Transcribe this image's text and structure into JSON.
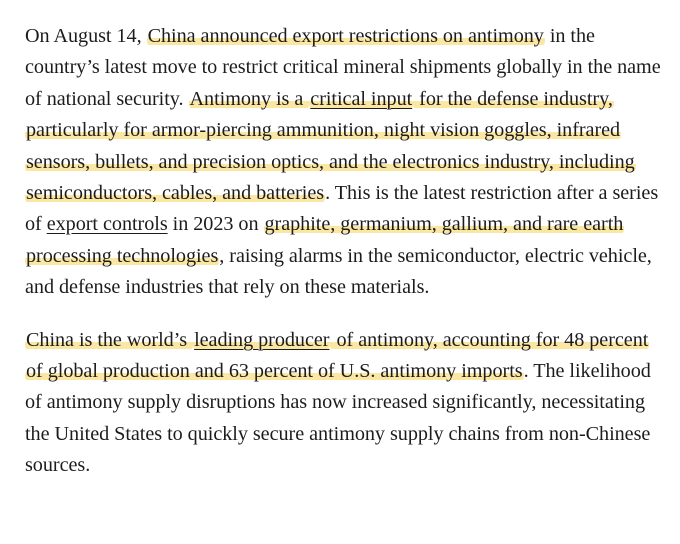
{
  "paragraphs": [
    {
      "segments": [
        {
          "text": "On August 14, ",
          "style": "plain"
        },
        {
          "text": "China announced export restrictions on antimony",
          "style": "highlight"
        },
        {
          "text": " in the country’s latest move to restrict critical mineral shipments globally in the name of national security. ",
          "style": "plain"
        },
        {
          "text": "Antimony is a ",
          "style": "highlight"
        },
        {
          "text": "critical input",
          "style": "highlight-link"
        },
        {
          "text": " for the defense industry, particularly for armor-piercing ammunition, night vision goggles, infrared sensors, bullets, and precision optics, and the electronics industry, including semiconductors, cables, and batteries",
          "style": "highlight"
        },
        {
          "text": ". This is the latest restriction after a series of ",
          "style": "plain"
        },
        {
          "text": "export controls",
          "style": "link"
        },
        {
          "text": " in 2023 on ",
          "style": "plain"
        },
        {
          "text": "graphite, germanium, gallium, and rare earth processing technologies",
          "style": "highlight"
        },
        {
          "text": ", raising alarms in the semiconductor, electric vehicle, and defense industries that rely on these materials.",
          "style": "plain"
        }
      ]
    },
    {
      "segments": [
        {
          "text": "China is the world’s ",
          "style": "highlight"
        },
        {
          "text": "leading producer",
          "style": "highlight-link"
        },
        {
          "text": " of antimony, accounting for 48 percent of global production and 63 percent of U.S. antimony imports",
          "style": "highlight"
        },
        {
          "text": ". The likelihood of antimony supply disruptions has now increased significantly, necessitating the United States to quickly secure antimony supply chains from non-Chinese sources.",
          "style": "plain"
        }
      ]
    }
  ],
  "colors": {
    "text": "#1c1c1c",
    "highlight": "#fbe7a1",
    "background": "#ffffff"
  }
}
